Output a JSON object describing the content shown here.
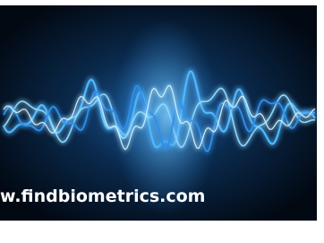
{
  "caption": "w.findbiometrics.com"
}
